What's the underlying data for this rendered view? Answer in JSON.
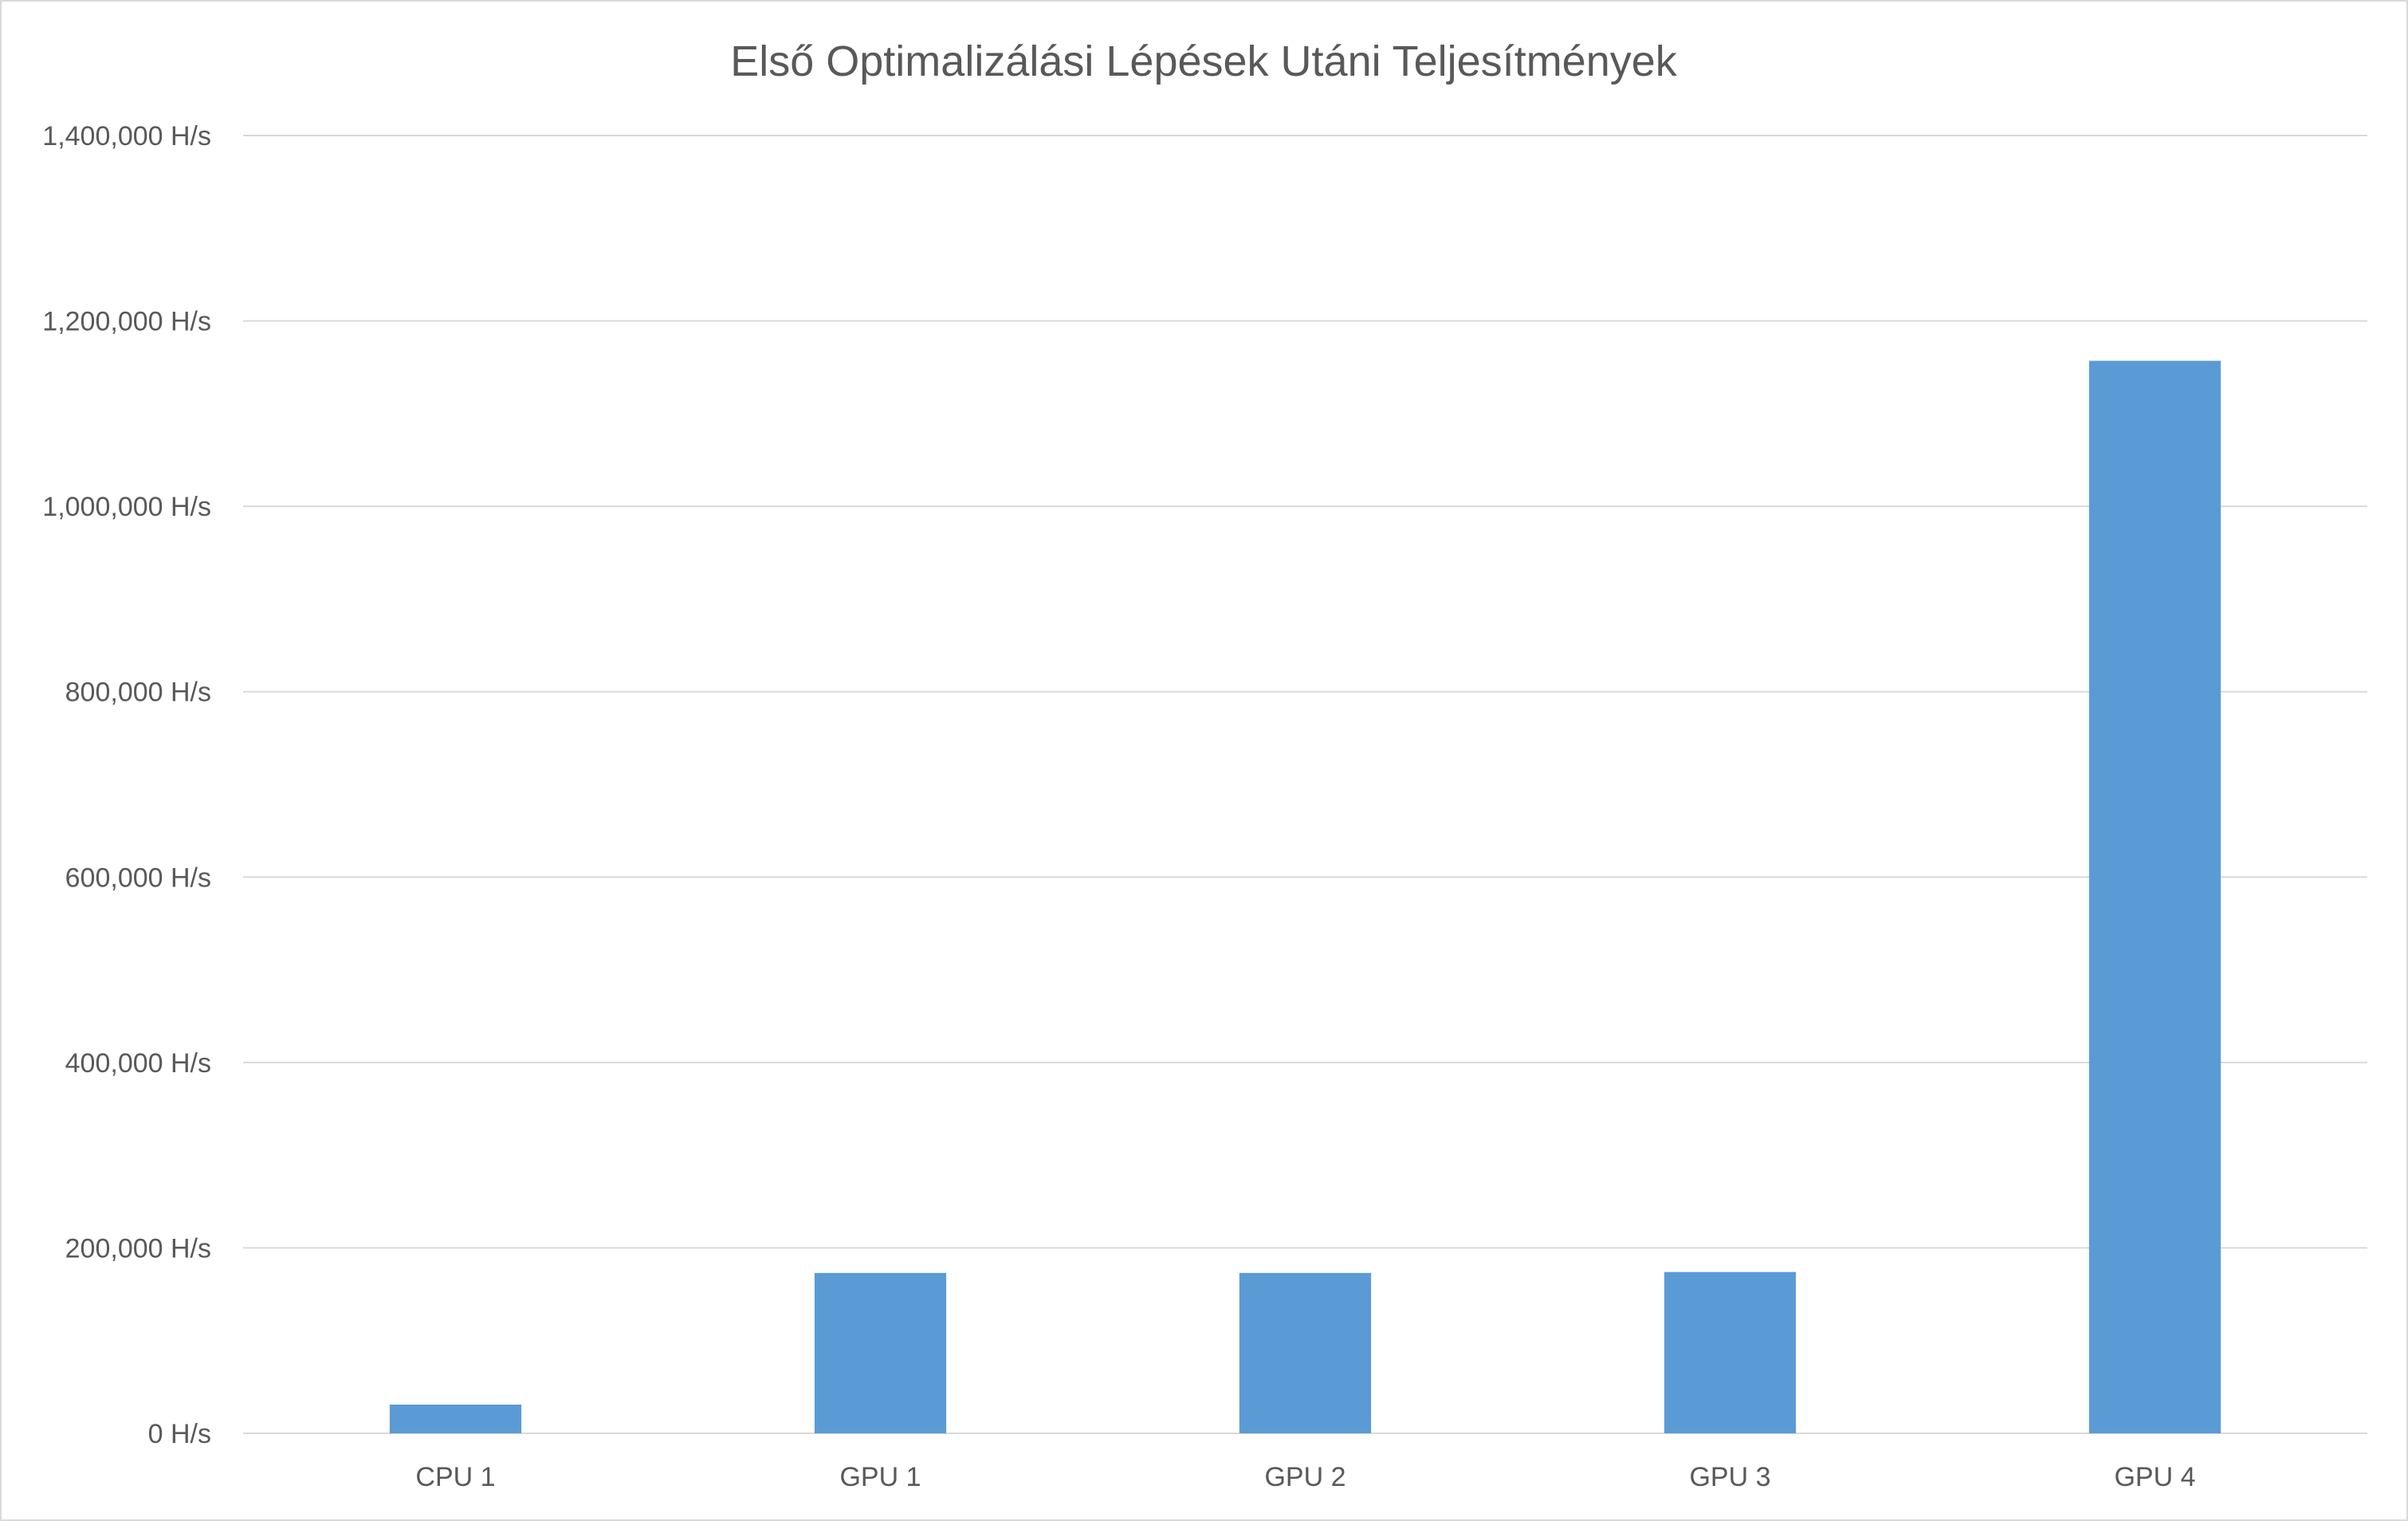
{
  "chart_data": {
    "type": "bar",
    "title": "Első Optimalizálási Lépések Utáni Teljesítmények",
    "xlabel": "",
    "ylabel": "",
    "categories": [
      "CPU 1",
      "GPU 1",
      "GPU 2",
      "GPU 3",
      "GPU 4"
    ],
    "values": [
      31000,
      173000,
      173000,
      174000,
      1157000
    ],
    "unit_suffix": " H/s",
    "ylim": [
      0,
      1400000
    ],
    "yticks": [
      0,
      200000,
      400000,
      600000,
      800000,
      1000000,
      1200000,
      1400000
    ],
    "ytick_labels": [
      "0 H/s",
      "200,000 H/s",
      "400,000 H/s",
      "600,000 H/s",
      "800,000 H/s",
      "1,000,000 H/s",
      "1,200,000 H/s",
      "1,400,000 H/s"
    ],
    "grid": true,
    "legend": "none",
    "colors": {
      "bar": "#5b9bd5",
      "grid": "#d9d9d9",
      "text": "#595959"
    }
  }
}
